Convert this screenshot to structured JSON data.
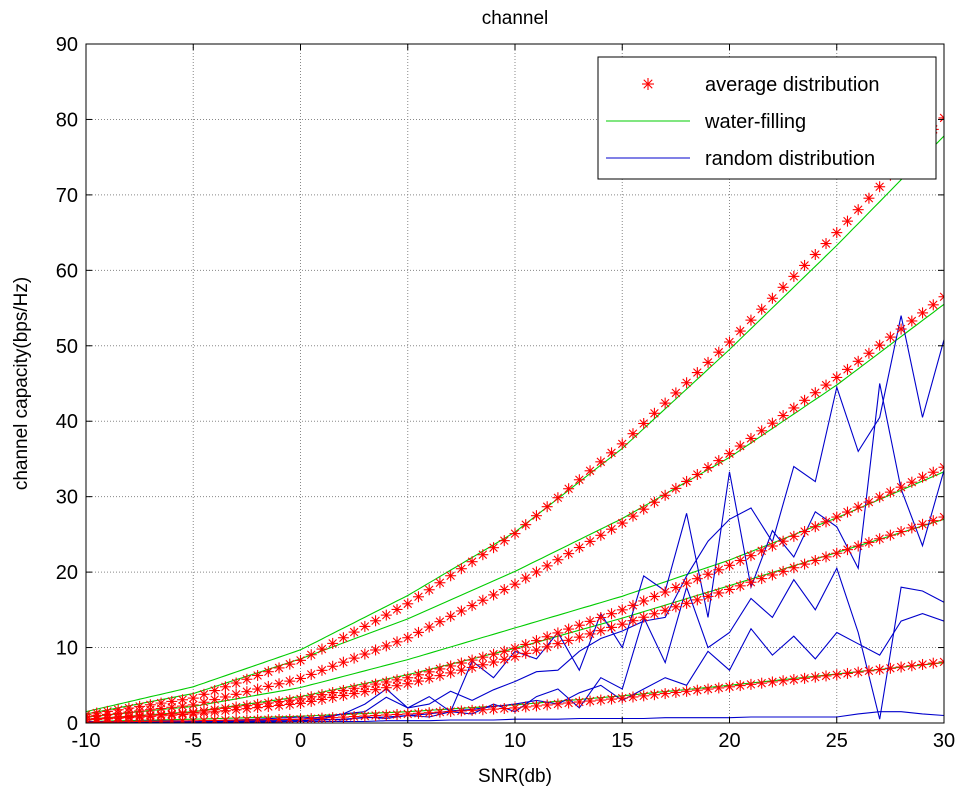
{
  "chart_data": {
    "type": "line",
    "title": "channel",
    "xlabel": "SNR(db)",
    "ylabel": "channel capacity(bps/Hz)",
    "xlim": [
      -10,
      30
    ],
    "ylim": [
      0,
      90
    ],
    "xticks": [
      -10,
      -5,
      0,
      5,
      10,
      15,
      20,
      25,
      30
    ],
    "yticks": [
      0,
      10,
      20,
      30,
      40,
      50,
      60,
      70,
      80,
      90
    ],
    "grid": true,
    "legend_position": "top-right",
    "legend": [
      "average distribution",
      "water-filling",
      "random distribution"
    ],
    "x_step": 0.5,
    "series": [
      {
        "name": "average distribution",
        "group": "average",
        "color": "#ff0000",
        "marker": "asterisk",
        "x": [
          -10,
          -5,
          0,
          5,
          10,
          15,
          20,
          25,
          30
        ],
        "values": [
          1.1,
          3.3,
          8.3,
          15.8,
          25.1,
          37.0,
          50.5,
          65.0,
          80.2
        ]
      },
      {
        "name": "average distribution",
        "group": "average",
        "color": "#ff0000",
        "marker": "asterisk",
        "x": [
          -10,
          -5,
          0,
          5,
          10,
          15,
          20,
          25,
          30
        ],
        "values": [
          0.8,
          2.4,
          5.9,
          11.3,
          18.4,
          26.5,
          35.7,
          45.8,
          56.5
        ]
      },
      {
        "name": "average distribution",
        "group": "average",
        "color": "#ff0000",
        "marker": "asterisk",
        "x": [
          -10,
          -5,
          0,
          5,
          10,
          15,
          20,
          25,
          30
        ],
        "values": [
          0.5,
          1.4,
          3.2,
          6.0,
          9.9,
          15.0,
          20.9,
          27.3,
          33.9
        ]
      },
      {
        "name": "average distribution",
        "group": "average",
        "color": "#ff0000",
        "marker": "asterisk",
        "x": [
          -10,
          -5,
          0,
          5,
          10,
          15,
          20,
          25,
          30
        ],
        "values": [
          0.4,
          1.2,
          2.6,
          5.2,
          8.8,
          13.1,
          17.7,
          22.5,
          27.3
        ]
      },
      {
        "name": "average distribution",
        "group": "average",
        "color": "#ff0000",
        "marker": "asterisk",
        "x": [
          -10,
          -5,
          0,
          5,
          10,
          15,
          20,
          25,
          30
        ],
        "values": [
          0.1,
          0.3,
          0.5,
          1.2,
          2.0,
          3.3,
          4.8,
          6.4,
          8.1
        ]
      },
      {
        "name": "water-filling",
        "group": "water",
        "color": "#00cc00",
        "x": [
          -10,
          -5,
          0,
          5,
          10,
          15,
          20,
          25,
          30
        ],
        "values": [
          1.5,
          4.8,
          9.7,
          16.9,
          25.3,
          36.4,
          49.5,
          63.3,
          77.8
        ]
      },
      {
        "name": "water-filling",
        "group": "water",
        "color": "#00cc00",
        "x": [
          -10,
          -5,
          0,
          5,
          10,
          15,
          20,
          25,
          30
        ],
        "values": [
          1.2,
          3.9,
          8.5,
          13.8,
          20.1,
          27.1,
          35.2,
          44.8,
          55.5
        ]
      },
      {
        "name": "water-filling",
        "group": "water",
        "color": "#00cc00",
        "x": [
          -10,
          -5,
          0,
          5,
          10,
          15,
          20,
          25,
          30
        ],
        "values": [
          0.8,
          2.2,
          4.7,
          8.4,
          12.6,
          16.8,
          21.6,
          27.2,
          33.3
        ]
      },
      {
        "name": "water-filling",
        "group": "water",
        "color": "#00cc00",
        "x": [
          -10,
          -5,
          0,
          5,
          10,
          15,
          20,
          25,
          30
        ],
        "values": [
          0.5,
          1.5,
          3.5,
          6.4,
          9.9,
          13.9,
          18.2,
          22.6,
          27.0
        ]
      },
      {
        "name": "water-filling",
        "group": "water",
        "color": "#00cc00",
        "x": [
          -10,
          -5,
          0,
          5,
          10,
          15,
          20,
          25,
          30
        ],
        "values": [
          0.2,
          0.5,
          0.9,
          1.5,
          2.4,
          3.6,
          5.0,
          6.5,
          8.0
        ]
      },
      {
        "name": "random distribution",
        "group": "random",
        "color": "#0000cc",
        "x": [
          -10,
          -8,
          -6,
          -4,
          -2,
          0,
          1,
          2,
          3,
          4,
          5,
          6,
          7,
          8,
          9,
          10,
          11,
          12,
          13,
          14,
          15,
          16,
          17,
          18,
          19,
          20,
          21,
          22,
          23,
          24,
          25,
          26,
          27,
          28,
          29,
          30
        ],
        "values": [
          0.2,
          0.2,
          0.3,
          0.2,
          0.4,
          0.5,
          0.8,
          1.2,
          1.5,
          3.4,
          2.0,
          2.5,
          4.2,
          3.0,
          4.4,
          5.5,
          6.8,
          7.0,
          9.5,
          11.2,
          12.2,
          13.5,
          14.0,
          19.5,
          24.1,
          27.0,
          28.5,
          24.0,
          34.0,
          32.0,
          44.5,
          36.0,
          40.5,
          54.0,
          40.5,
          50.8
        ]
      },
      {
        "name": "random distribution",
        "group": "random",
        "color": "#0000cc",
        "x": [
          -10,
          -8,
          -6,
          -4,
          -2,
          0,
          1,
          2,
          3,
          4,
          5,
          6,
          7,
          8,
          9,
          10,
          11,
          12,
          13,
          14,
          15,
          16,
          17,
          18,
          19,
          20,
          21,
          22,
          23,
          24,
          25,
          26,
          27,
          28,
          29,
          30
        ],
        "values": [
          0.1,
          0.2,
          0.2,
          0.3,
          0.5,
          0.8,
          0.6,
          1.2,
          2.5,
          4.5,
          2.0,
          3.5,
          1.5,
          8.2,
          6.0,
          9.5,
          8.5,
          12.0,
          7.0,
          14.5,
          10.0,
          19.5,
          17.5,
          27.8,
          14.0,
          33.3,
          18.0,
          25.5,
          22.0,
          28.0,
          26.0,
          20.5,
          45.0,
          31.0,
          23.5,
          33.5
        ]
      },
      {
        "name": "random distribution",
        "group": "random",
        "color": "#0000cc",
        "x": [
          -10,
          -8,
          -6,
          -4,
          -2,
          0,
          1,
          2,
          3,
          4,
          5,
          6,
          7,
          8,
          9,
          10,
          11,
          12,
          13,
          14,
          15,
          16,
          17,
          18,
          19,
          20,
          21,
          22,
          23,
          24,
          25,
          26,
          27,
          28,
          29,
          30
        ],
        "values": [
          0.1,
          0.1,
          0.2,
          0.2,
          0.3,
          0.3,
          0.5,
          0.4,
          0.8,
          0.6,
          1.0,
          0.8,
          1.5,
          1.2,
          2.5,
          1.5,
          3.5,
          4.5,
          2.0,
          6.0,
          4.5,
          14.0,
          8.0,
          18.0,
          10.0,
          12.0,
          16.5,
          14.0,
          19.0,
          15.0,
          20.5,
          12.0,
          0.5,
          18.0,
          17.5,
          16.0
        ]
      },
      {
        "name": "random distribution",
        "group": "random",
        "color": "#0000cc",
        "x": [
          -10,
          -8,
          -6,
          -4,
          -2,
          0,
          1,
          2,
          3,
          4,
          5,
          6,
          7,
          8,
          9,
          10,
          11,
          12,
          13,
          14,
          15,
          16,
          17,
          18,
          19,
          20,
          21,
          22,
          23,
          24,
          25,
          26,
          27,
          28,
          29,
          30
        ],
        "values": [
          0.1,
          0.1,
          0.1,
          0.2,
          0.2,
          0.3,
          0.4,
          0.5,
          0.7,
          0.8,
          1.0,
          1.2,
          1.6,
          1.8,
          2.2,
          2.5,
          3.0,
          2.5,
          4.0,
          5.0,
          3.0,
          4.5,
          6.0,
          5.0,
          9.5,
          7.0,
          12.5,
          9.0,
          11.5,
          8.5,
          12.0,
          10.5,
          9.0,
          13.5,
          14.5,
          13.5
        ]
      },
      {
        "name": "random distribution",
        "group": "random",
        "color": "#0000cc",
        "x": [
          -10,
          -8,
          -6,
          -4,
          -2,
          0,
          1,
          2,
          3,
          4,
          5,
          6,
          7,
          8,
          9,
          10,
          11,
          12,
          13,
          14,
          15,
          16,
          17,
          18,
          19,
          20,
          21,
          22,
          23,
          24,
          25,
          26,
          27,
          28,
          29,
          30
        ],
        "values": [
          0.1,
          0.1,
          0.1,
          0.1,
          0.1,
          0.2,
          0.2,
          0.2,
          0.2,
          0.3,
          0.3,
          0.3,
          0.4,
          0.4,
          0.4,
          0.5,
          0.5,
          0.5,
          0.6,
          0.6,
          0.6,
          0.6,
          0.7,
          0.7,
          0.7,
          0.7,
          0.8,
          0.8,
          0.8,
          0.8,
          0.8,
          1.2,
          1.5,
          1.5,
          1.2,
          1.0
        ]
      }
    ]
  }
}
